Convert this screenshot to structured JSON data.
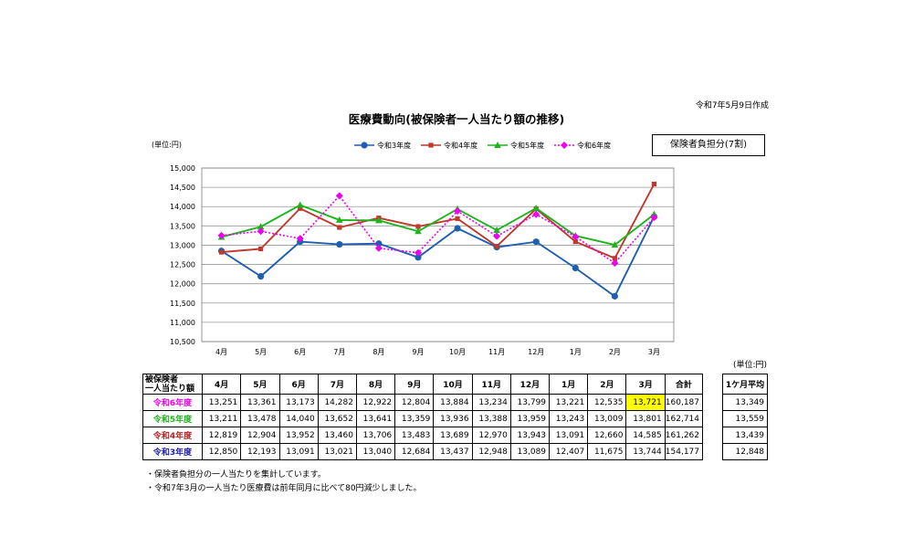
{
  "header": {
    "created_date": "令和7年5月9日作成",
    "title": "医療費動向(被保険者一人当たり額の推移)",
    "unit_chart": "(単位:円)",
    "burden_label": "保険者負担分(7割)"
  },
  "chart_data": {
    "type": "line",
    "title": "医療費動向(被保険者一人当たり額の推移)",
    "xlabel": "",
    "ylabel": "(単位:円)",
    "categories": [
      "4月",
      "5月",
      "6月",
      "7月",
      "8月",
      "9月",
      "10月",
      "11月",
      "12月",
      "1月",
      "2月",
      "3月"
    ],
    "ylim": [
      10500,
      15000
    ],
    "yticks": [
      10500,
      11000,
      11500,
      12000,
      12500,
      13000,
      13500,
      14000,
      14500,
      15000
    ],
    "ytick_labels": [
      "10,500",
      "11,000",
      "11,500",
      "12,000",
      "12,500",
      "13,000",
      "13,500",
      "14,000",
      "14,500",
      "15,000"
    ],
    "grid": true,
    "legend_position": "top",
    "series": [
      {
        "name": "令和3年度",
        "color": "#1f5fb0",
        "marker": "circle",
        "dash": "solid",
        "values": [
          12850,
          12193,
          13091,
          13021,
          13040,
          12684,
          13437,
          12948,
          13089,
          12407,
          11675,
          13744
        ]
      },
      {
        "name": "令和4年度",
        "color": "#c0392b",
        "marker": "square",
        "dash": "solid",
        "values": [
          12819,
          12904,
          13952,
          13460,
          13706,
          13483,
          13689,
          12970,
          13943,
          13091,
          12660,
          14585
        ]
      },
      {
        "name": "令和5年度",
        "color": "#1db31d",
        "marker": "triangle",
        "dash": "solid",
        "values": [
          13211,
          13478,
          14040,
          13652,
          13641,
          13359,
          13936,
          13388,
          13959,
          13243,
          13009,
          13801
        ]
      },
      {
        "name": "令和6年度",
        "color": "#ee00ee",
        "marker": "diamond",
        "dash": "dotted",
        "values": [
          13251,
          13361,
          13173,
          14282,
          12922,
          12804,
          13884,
          13234,
          13799,
          13221,
          12535,
          13721
        ]
      }
    ]
  },
  "table": {
    "unit": "(単位:円)",
    "corner_line1": "被保険者",
    "corner_line2": "一人当たり額",
    "months": [
      "4月",
      "5月",
      "6月",
      "7月",
      "8月",
      "9月",
      "10月",
      "11月",
      "12月",
      "1月",
      "2月",
      "3月"
    ],
    "total_label": "合計",
    "avg_label": "1ケ月平均",
    "rows": [
      {
        "label": "令和6年度",
        "color": "#ee00ee",
        "values": [
          "13,251",
          "13,361",
          "13,173",
          "14,282",
          "12,922",
          "12,804",
          "13,884",
          "13,234",
          "13,799",
          "13,221",
          "12,535",
          "13,721"
        ],
        "total": "160,187",
        "avg": "13,349"
      },
      {
        "label": "令和5年度",
        "color": "#1db31d",
        "values": [
          "13,211",
          "13,478",
          "14,040",
          "13,652",
          "13,641",
          "13,359",
          "13,936",
          "13,388",
          "13,959",
          "13,243",
          "13,009",
          "13,801"
        ],
        "total": "162,714",
        "avg": "13,559"
      },
      {
        "label": "令和4年度",
        "color": "#b22222",
        "values": [
          "12,819",
          "12,904",
          "13,952",
          "13,460",
          "13,706",
          "13,483",
          "13,689",
          "12,970",
          "13,943",
          "13,091",
          "12,660",
          "14,585"
        ],
        "total": "161,262",
        "avg": "13,439"
      },
      {
        "label": "令和3年度",
        "color": "#1b1bb0",
        "values": [
          "12,850",
          "12,193",
          "13,091",
          "13,021",
          "13,040",
          "12,684",
          "13,437",
          "12,948",
          "13,089",
          "12,407",
          "11,675",
          "13,744"
        ],
        "total": "154,177",
        "avg": "12,848"
      }
    ],
    "highlight_color": "#ffff00"
  },
  "notes": [
    "・保険者負担分の一人当たりを集計しています。",
    "・令和7年3月の一人当たり医療費は前年同月に比べて80円減少しました。"
  ]
}
